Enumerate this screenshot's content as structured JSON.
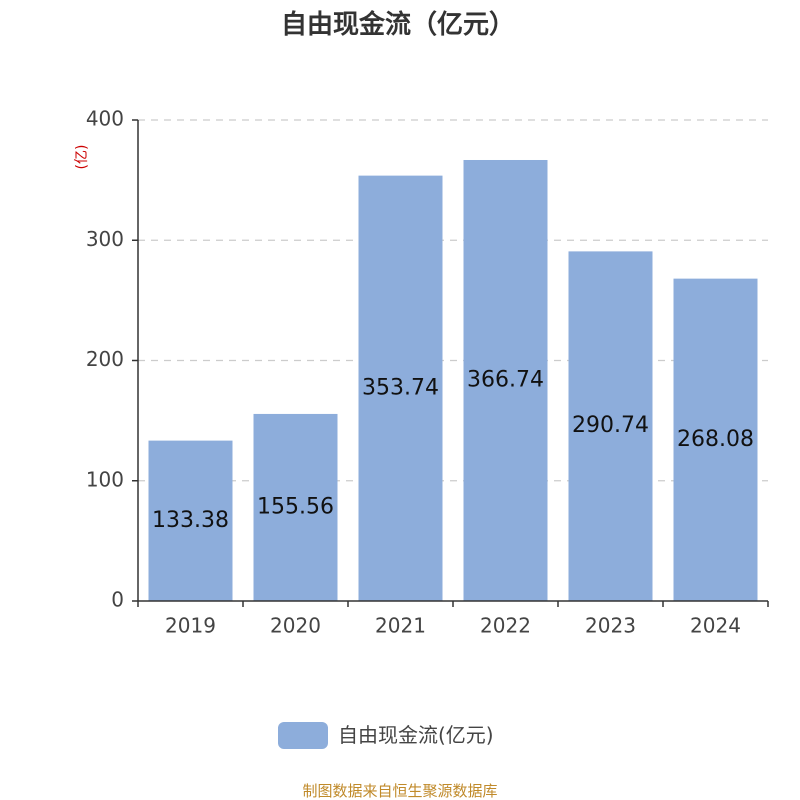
{
  "chart_data": {
    "type": "bar",
    "title": "自由现金流（亿元）",
    "ylabel": "(亿)",
    "categories": [
      "2019",
      "2020",
      "2021",
      "2022",
      "2023",
      "2024"
    ],
    "series": [
      {
        "name": "自由现金流(亿元)",
        "values": [
          133.38,
          155.56,
          353.74,
          366.74,
          290.74,
          268.08
        ]
      }
    ],
    "data_labels": [
      "133.38",
      "155.56",
      "353.74",
      "366.74",
      "290.74",
      "268.08"
    ],
    "ylim": [
      0,
      400
    ],
    "yticks": [
      0,
      100,
      200,
      300,
      400
    ],
    "grid": true,
    "legend_position": "bottom-center",
    "colors": {
      "bar": "#8daddb",
      "grid": "#cccccc",
      "axis": "#333333"
    }
  },
  "source": "制图数据来自恒生聚源数据库"
}
